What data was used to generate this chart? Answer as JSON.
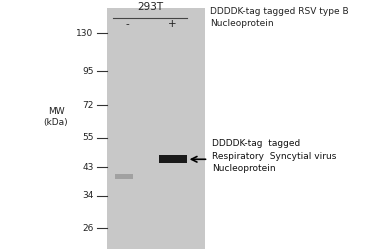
{
  "bg_color": "#d3d3d3",
  "white_bg": "#ffffff",
  "gel_color": "#c8c8c8",
  "band_color_dark": "#1a1a1a",
  "band_color_light": "#aaaaaa",
  "title_293T": "293T",
  "col_minus": "-",
  "col_plus": "+",
  "col_header": "DDDDK-tag tagged RSV type B\nNucleoprotein",
  "mw_label": "MW\n(kDa)",
  "mw_marks": [
    130,
    95,
    72,
    55,
    43,
    34,
    26
  ],
  "annotation_text": "DDDDK-tag  tagged\nRespiratory  Syncytial virus\nNucleoprotein",
  "band_plus_kda": 46,
  "band_minus_kda": 40,
  "font_size_mw": 6.5,
  "font_size_header": 6.5,
  "font_size_annot": 6.5
}
